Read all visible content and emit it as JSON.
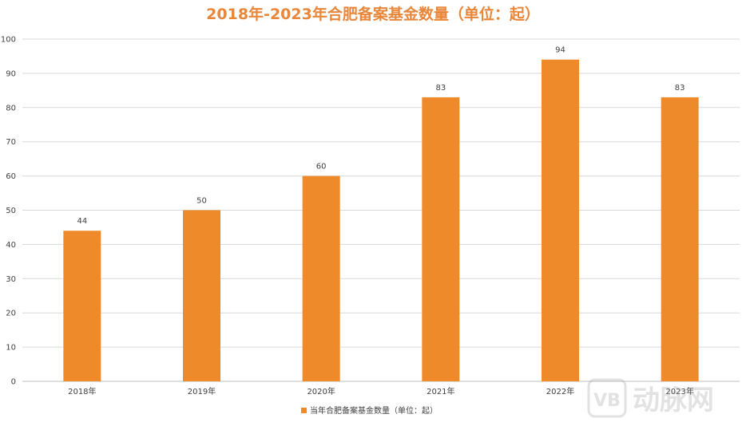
{
  "chart_data": {
    "type": "bar",
    "title": "2018年-2023年合肥备案基金数量（单位：起）",
    "categories": [
      "2018年",
      "2019年",
      "2020年",
      "2021年",
      "2022年",
      "2023年"
    ],
    "series": [
      {
        "name": "当年合肥备案基金数量（单位：起）",
        "values": [
          44,
          50,
          60,
          83,
          94,
          83
        ],
        "color": "#EF8A2A"
      }
    ],
    "ylim": [
      0,
      100
    ],
    "yticks": [
      0,
      10,
      20,
      30,
      40,
      50,
      60,
      70,
      80,
      90,
      100
    ],
    "grid": true,
    "legend_position": "bottom",
    "title_color": "#E8863A"
  },
  "watermark": {
    "text": "动脉网",
    "logo_letters": "VB"
  }
}
